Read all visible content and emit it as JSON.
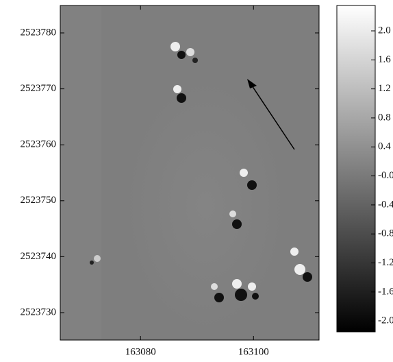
{
  "chart_data": {
    "type": "raster-map",
    "xlim": [
      163065.8,
      163111.6
    ],
    "xticks": [
      163080,
      163100
    ],
    "ylim": [
      2523725.1,
      2523784.9
    ],
    "yticks": [
      2523730,
      2523740,
      2523750,
      2523760,
      2523770,
      2523780
    ],
    "background_color": "#7e7e7e",
    "colorbar": {
      "lim": [
        -2.15,
        2.35
      ],
      "colors": [
        "#000000",
        "#ffffff"
      ],
      "ticks": [
        {
          "value": 2,
          "label": "2.0"
        },
        {
          "value": 1.6,
          "label": "1.6"
        },
        {
          "value": 1.2,
          "label": "1.2"
        },
        {
          "value": 0.8,
          "label": "0.8"
        },
        {
          "value": 0.4,
          "label": "0.4"
        },
        {
          "value": 0,
          "label": "-0.0"
        },
        {
          "value": -0.4,
          "label": "-0.4"
        },
        {
          "value": -0.8,
          "label": "-0.8"
        },
        {
          "value": -1.2,
          "label": "-1.2"
        },
        {
          "value": -1.6,
          "label": "-1.6"
        },
        {
          "value": -2,
          "label": "-2.0"
        }
      ]
    }
  }
}
